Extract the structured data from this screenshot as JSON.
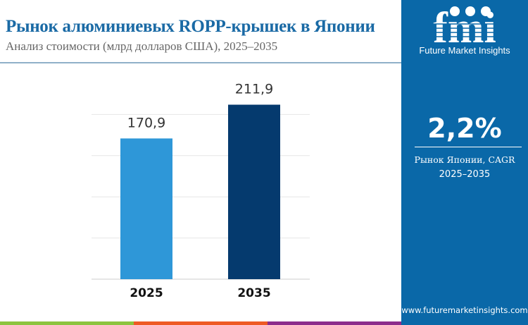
{
  "header": {
    "title": "Рынок алюминиевых ROPP-крышек в Японии",
    "subtitle": "Анализ стоимости (млрд долларов США), 2025–2035"
  },
  "sidebar": {
    "brand_logo": "fmi",
    "brand_name": "Future Market Insights",
    "cagr_value": "2,2%",
    "cagr_label": "Рынок Японии, CAGR",
    "cagr_years": "2025–2035",
    "url": "www.futuremarketinsights.com"
  },
  "colors": {
    "bar_2025": "#2e97d8",
    "bar_2035": "#053a6e",
    "sidebar": "#0a68a8",
    "title": "#1a6aa5",
    "strip": [
      "#8cc43f",
      "#ee5a24",
      "#8c2d8c"
    ]
  },
  "chart_data": {
    "type": "bar",
    "title": "Рынок алюминиевых ROPP-крышек в Японии",
    "categories": [
      "2025",
      "2035"
    ],
    "values": [
      170.9,
      211.9
    ],
    "value_labels": [
      "170,9",
      "211,9"
    ],
    "xlabel": "",
    "ylabel": "",
    "ylim": [
      0,
      250
    ],
    "grid": true
  }
}
